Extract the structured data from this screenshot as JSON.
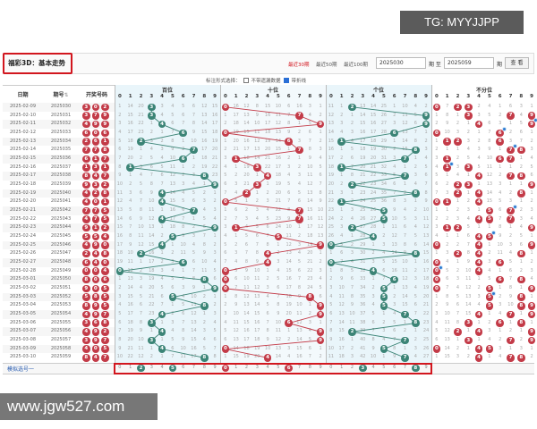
{
  "watermark": "TG: MYYJJPP",
  "site": "www.jgw527.com",
  "header": {
    "title": "福彩3D：基本走势",
    "recent30": "最近30期",
    "recent50": "最近50期",
    "recent100": "最近100期",
    "from": "2025030",
    "to_label": "期 至",
    "to": "2025059",
    "period": "期",
    "query": "查 看"
  },
  "options": {
    "label": "标注形式选择：",
    "no_omission": "不带遗漏数据",
    "no_omission_checked": false,
    "with_line": "带折线",
    "with_line_checked": true
  },
  "columns": {
    "date": "日期",
    "issue": "期号",
    "sort": "⇅",
    "draw": "开奖号码",
    "groups": [
      "百位",
      "十位",
      "个位",
      "不分位"
    ],
    "digits": [
      "0",
      "1",
      "2",
      "3",
      "4",
      "5",
      "6",
      "7",
      "8",
      "9"
    ]
  },
  "colors": {
    "green": "#3b8476",
    "red": "#c33b48",
    "accent": "#d2161e",
    "dup": "#2b7bd1"
  },
  "rows": [
    {
      "date": "2025-02-09",
      "issue": "2025030",
      "n": [
        3,
        0,
        2
      ]
    },
    {
      "date": "2025-02-10",
      "issue": "2025031",
      "n": [
        3,
        7,
        9
      ]
    },
    {
      "date": "2025-02-11",
      "issue": "2025032",
      "n": [
        4,
        9,
        9
      ]
    },
    {
      "date": "2025-02-12",
      "issue": "2025033",
      "n": [
        6,
        0,
        6
      ]
    },
    {
      "date": "2025-02-13",
      "issue": "2025034",
      "n": [
        2,
        6,
        1
      ]
    },
    {
      "date": "2025-02-14",
      "issue": "2025035",
      "n": [
        7,
        7,
        8
      ]
    },
    {
      "date": "2025-02-15",
      "issue": "2025036",
      "n": [
        6,
        1,
        7
      ]
    },
    {
      "date": "2025-02-16",
      "issue": "2025037",
      "n": [
        1,
        3,
        1
      ]
    },
    {
      "date": "2025-02-17",
      "issue": "2025038",
      "n": [
        8,
        4,
        7
      ]
    },
    {
      "date": "2025-02-18",
      "issue": "2025039",
      "n": [
        9,
        3,
        2
      ]
    },
    {
      "date": "2025-02-19",
      "issue": "2025040",
      "n": [
        4,
        2,
        8
      ]
    },
    {
      "date": "2025-02-20",
      "issue": "2025041",
      "n": [
        4,
        0,
        1
      ]
    },
    {
      "date": "2025-02-21",
      "issue": "2025042",
      "n": [
        7,
        7,
        5
      ]
    },
    {
      "date": "2025-02-22",
      "issue": "2025043",
      "n": [
        4,
        7,
        5
      ]
    },
    {
      "date": "2025-02-23",
      "issue": "2025044",
      "n": [
        9,
        1,
        2
      ]
    },
    {
      "date": "2025-02-24",
      "issue": "2025045",
      "n": [
        5,
        5,
        4
      ]
    },
    {
      "date": "2025-02-25",
      "issue": "2025046",
      "n": [
        4,
        9,
        0
      ]
    },
    {
      "date": "2025-02-26",
      "issue": "2025047",
      "n": [
        2,
        4,
        8
      ]
    },
    {
      "date": "2025-02-27",
      "issue": "2025048",
      "n": [
        6,
        4,
        0
      ]
    },
    {
      "date": "2025-02-28",
      "issue": "2025049",
      "n": [
        0,
        0,
        4
      ]
    },
    {
      "date": "2025-03-01",
      "issue": "2025050",
      "n": [
        8,
        0,
        6
      ]
    },
    {
      "date": "2025-03-02",
      "issue": "2025051",
      "n": [
        9,
        0,
        5
      ]
    },
    {
      "date": "2025-03-03",
      "issue": "2025052",
      "n": [
        5,
        8,
        5
      ]
    },
    {
      "date": "2025-03-04",
      "issue": "2025053",
      "n": [
        8,
        9,
        5
      ]
    },
    {
      "date": "2025-03-05",
      "issue": "2025054",
      "n": [
        4,
        9,
        7
      ]
    },
    {
      "date": "2025-03-06",
      "issue": "2025055",
      "n": [
        3,
        6,
        8
      ]
    },
    {
      "date": "2025-03-07",
      "issue": "2025056",
      "n": [
        4,
        9,
        2
      ]
    },
    {
      "date": "2025-03-08",
      "issue": "2025057",
      "n": [
        3,
        9,
        7
      ]
    },
    {
      "date": "2025-03-09",
      "issue": "2025058",
      "n": [
        4,
        0,
        5
      ]
    },
    {
      "date": "2025-03-10",
      "issue": "2025059",
      "n": [
        8,
        4,
        7
      ]
    }
  ],
  "first_row_omission": [
    [
      1,
      14,
      20,
      null,
      3,
      4,
      5,
      6,
      12,
      15
    ],
    [
      null,
      16,
      12,
      8,
      15,
      10,
      6,
      16,
      3,
      1
    ],
    [
      11,
      1,
      null,
      13,
      14,
      25,
      1,
      10,
      4,
      2
    ],
    [
      null,
      7,
      null,
      null,
      2,
      4,
      1,
      6,
      3,
      1
    ]
  ],
  "simulate": {
    "label": "模拟选号一",
    "selected": [
      [
        2,
        5
      ],
      [
        0,
        6
      ],
      [
        3,
        8
      ]
    ]
  }
}
